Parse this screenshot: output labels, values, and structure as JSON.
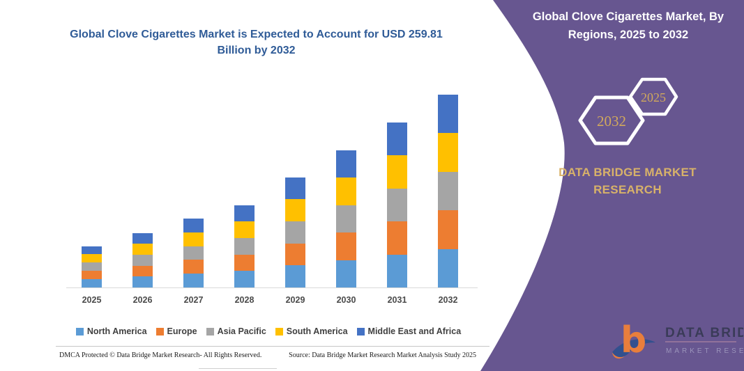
{
  "chart_data": {
    "type": "bar",
    "stacked": true,
    "title": "Global Clove Cigarettes Market is Expected to Account for USD 259.81 Billion by 2032",
    "unit": "USD Billion",
    "categories": [
      "2025",
      "2026",
      "2027",
      "2028",
      "2029",
      "2030",
      "2031",
      "2032"
    ],
    "series": [
      {
        "name": "North America",
        "color": "#5B9BD5",
        "values": [
          11.16,
          14.68,
          18.56,
          22.18,
          29.66,
          36.98,
          44.48,
          51.96
        ]
      },
      {
        "name": "Europe",
        "color": "#ED7D31",
        "values": [
          11.16,
          14.68,
          18.56,
          22.18,
          29.66,
          36.98,
          44.48,
          51.96
        ]
      },
      {
        "name": "Asia Pacific",
        "color": "#A5A5A5",
        "values": [
          11.16,
          14.68,
          18.56,
          22.18,
          29.66,
          36.98,
          44.48,
          51.96
        ]
      },
      {
        "name": "South America",
        "color": "#FFC000",
        "values": [
          11.16,
          14.68,
          18.56,
          22.18,
          29.66,
          36.98,
          44.48,
          51.96
        ]
      },
      {
        "name": "Middle East and Africa",
        "color": "#4472C4",
        "values": [
          11.16,
          14.68,
          18.56,
          22.18,
          29.66,
          36.98,
          44.48,
          51.96
        ]
      }
    ],
    "totals": [
      55.8,
      73.4,
      92.8,
      110.9,
      148.3,
      184.9,
      222.4,
      259.81
    ],
    "ylim": [
      0,
      260
    ],
    "grid": false,
    "legend_position": "bottom",
    "title_color": "#2F5B97"
  },
  "right_panel": {
    "bg_color": "#675690",
    "accent_color": "#D8B269",
    "header": "Global Clove Cigarettes Market, By Regions, 2025 to 2032",
    "hex_back_label": "2032",
    "hex_front_label": "2025",
    "brand_text": "DATA BRIDGE MARKET RESEARCH",
    "logo": {
      "title": "DATA BRIDGE",
      "subtitle": "MARKET RESEARCH"
    }
  },
  "footer": {
    "left": "DMCA Protected © Data Bridge Market Research-  All Rights Reserved.",
    "right": "Source: Data Bridge Market Research  Market Analysis Study 2025"
  }
}
